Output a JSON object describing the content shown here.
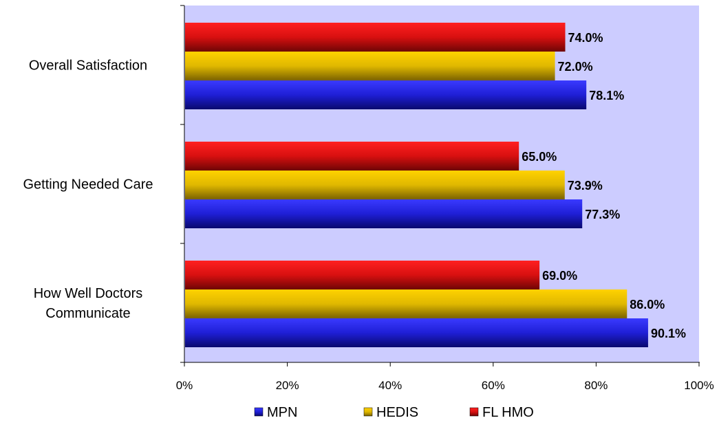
{
  "chart_data": {
    "type": "bar",
    "orientation": "horizontal",
    "categories": [
      "Overall Satisfaction",
      "Getting Needed Care",
      "How Well Doctors Communicate"
    ],
    "category_lines": [
      [
        "Overall Satisfaction"
      ],
      [
        "Getting Needed Care"
      ],
      [
        "How Well Doctors",
        "Communicate"
      ]
    ],
    "series": [
      {
        "name": "MPN",
        "values": [
          78.1,
          77.3,
          90.1
        ],
        "labels": [
          "78.1%",
          "77.3%",
          "90.1%"
        ],
        "color": "#1f1fd6"
      },
      {
        "name": "HEDIS",
        "values": [
          72.0,
          73.9,
          86.0
        ],
        "labels": [
          "72.0%",
          "73.9%",
          "86.0%"
        ],
        "color": "#e0b800"
      },
      {
        "name": "FL HMO",
        "values": [
          74.0,
          65.0,
          69.0
        ],
        "labels": [
          "74.0%",
          "65.0%",
          "69.0%"
        ],
        "color": "#d81010"
      }
    ],
    "xlim": [
      0,
      100
    ],
    "xticks": [
      "0%",
      "20%",
      "40%",
      "60%",
      "80%",
      "100%"
    ],
    "plot_background": "#ccccff",
    "legend_position": "bottom",
    "grid": false
  }
}
